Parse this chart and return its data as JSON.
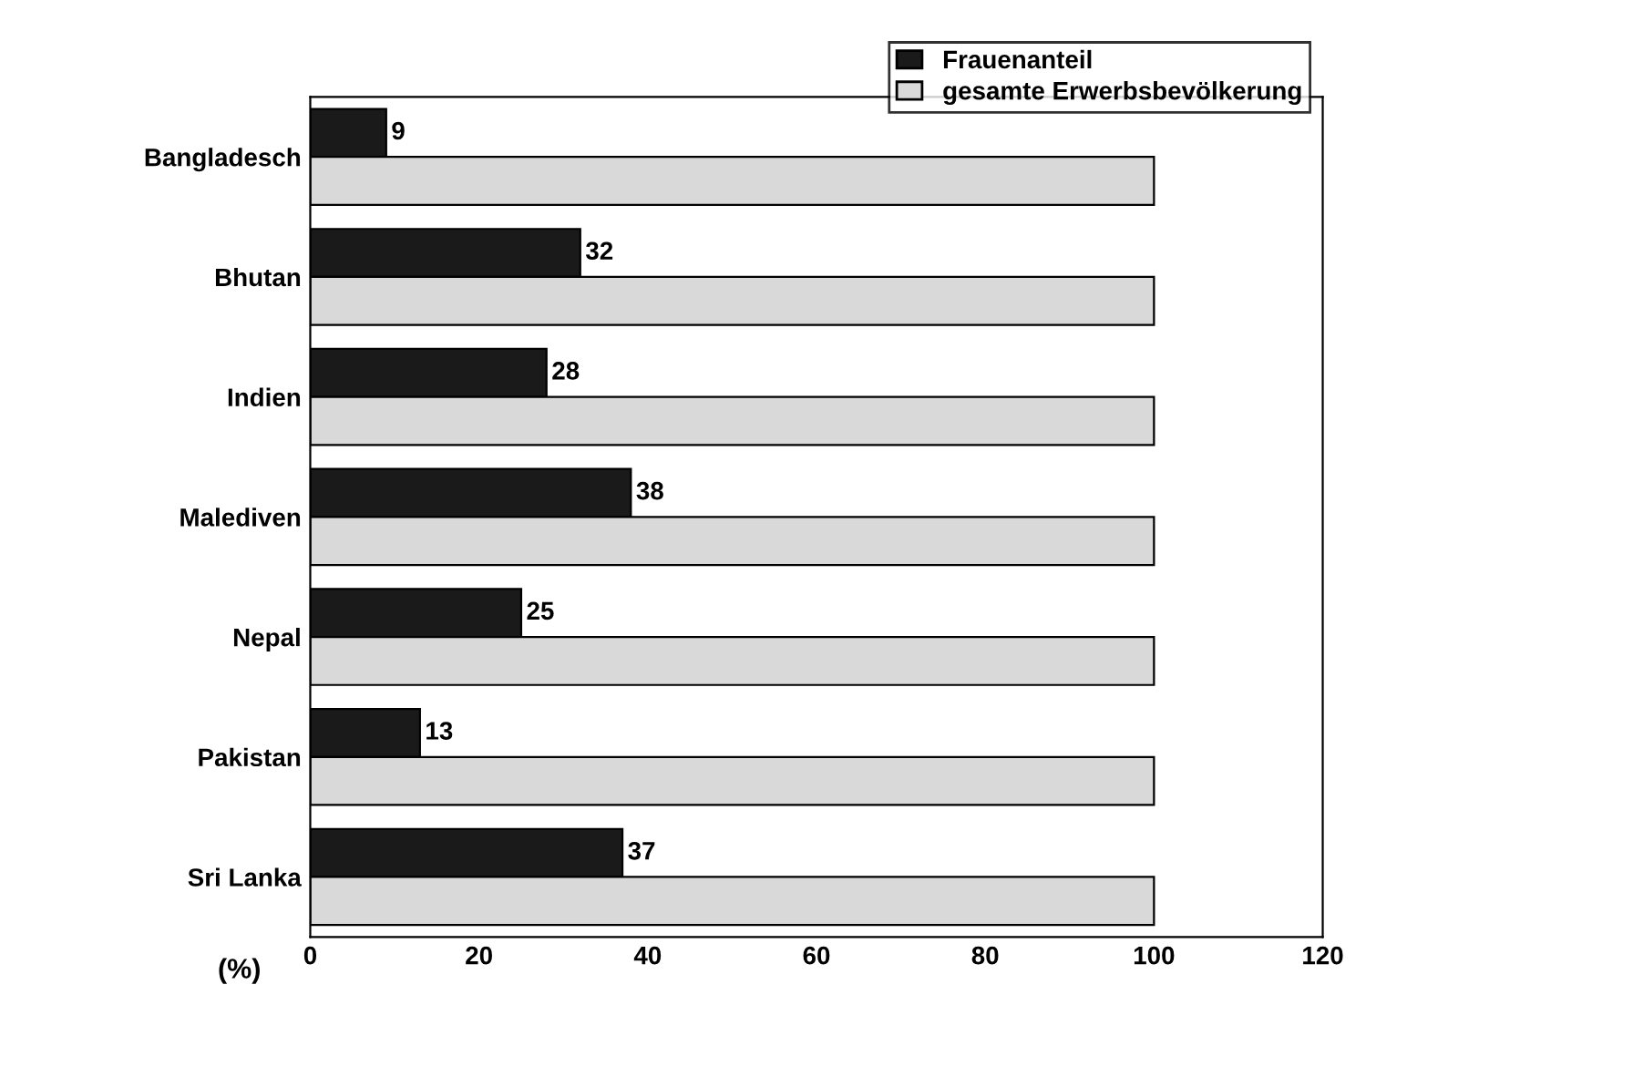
{
  "chart_data": {
    "type": "bar",
    "orientation": "horizontal",
    "xlabel": "(%)",
    "categories": [
      "Bangladesch",
      "Bhutan",
      "Indien",
      "Malediven",
      "Nepal",
      "Pakistan",
      "Sri Lanka"
    ],
    "series": [
      {
        "name": "Frauenanteil",
        "color": "#1a1a1a",
        "values": [
          9,
          32,
          28,
          38,
          25,
          13,
          37
        ],
        "value_labels": [
          "9",
          "32",
          "28",
          "38",
          "25",
          "13",
          "37"
        ]
      },
      {
        "name": "gesamte Erwerbsbevölkerung",
        "color": "#d9d9d9",
        "values": [
          100,
          100,
          100,
          100,
          100,
          100,
          100
        ]
      }
    ],
    "xlim": [
      0,
      120
    ],
    "xticks": [
      0,
      20,
      40,
      60,
      80,
      100,
      120
    ],
    "grid": false,
    "legend": "top right"
  }
}
